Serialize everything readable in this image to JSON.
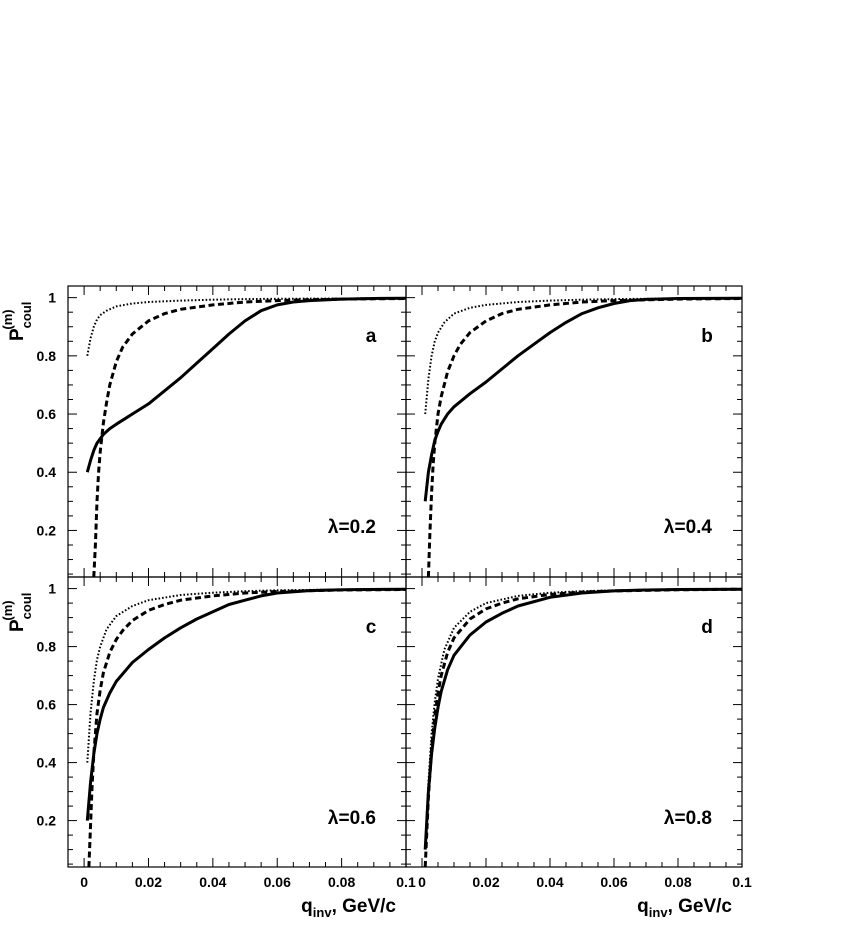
{
  "chart_data": [
    {
      "type": "line",
      "panel": "a",
      "annotation": "λ=0.2",
      "xlim": [
        -0.005,
        0.1
      ],
      "ylim": [
        0.04,
        1.04
      ],
      "y_axis_title": "P",
      "y_axis_sub": "coul",
      "y_axis_sup": "(m)",
      "x_axis_title": "",
      "x_axis_sub": "",
      "x_axis_tail": "",
      "series": [
        {
          "style": "solid",
          "x": [
            0.001,
            0.002,
            0.003,
            0.004,
            0.005,
            0.006,
            0.008,
            0.01,
            0.015,
            0.02,
            0.025,
            0.03,
            0.035,
            0.04,
            0.045,
            0.05,
            0.055,
            0.06,
            0.065,
            0.07,
            0.08,
            0.09,
            0.1
          ],
          "y": [
            0.4,
            0.44,
            0.475,
            0.5,
            0.515,
            0.53,
            0.55,
            0.565,
            0.6,
            0.635,
            0.68,
            0.725,
            0.775,
            0.825,
            0.875,
            0.92,
            0.955,
            0.975,
            0.985,
            0.99,
            0.995,
            0.997,
            0.998
          ]
        },
        {
          "style": "dashed",
          "x": [
            0.003,
            0.0035,
            0.004,
            0.0045,
            0.005,
            0.006,
            0.007,
            0.008,
            0.01,
            0.012,
            0.015,
            0.02,
            0.025,
            0.03,
            0.04,
            0.05,
            0.06,
            0.07,
            0.08,
            0.1
          ],
          "y": [
            0.04,
            0.15,
            0.3,
            0.4,
            0.47,
            0.57,
            0.64,
            0.7,
            0.78,
            0.83,
            0.875,
            0.92,
            0.945,
            0.96,
            0.975,
            0.985,
            0.99,
            0.993,
            0.995,
            0.997
          ]
        },
        {
          "style": "dotted",
          "x": [
            0.001,
            0.002,
            0.003,
            0.004,
            0.005,
            0.007,
            0.01,
            0.015,
            0.02,
            0.03,
            0.04,
            0.05,
            0.06,
            0.08,
            0.1
          ],
          "y": [
            0.8,
            0.86,
            0.9,
            0.925,
            0.94,
            0.955,
            0.97,
            0.98,
            0.985,
            0.99,
            0.993,
            0.995,
            0.996,
            0.997,
            0.998
          ]
        }
      ]
    },
    {
      "type": "line",
      "panel": "b",
      "annotation": "λ=0.4",
      "xlim": [
        -0.005,
        0.1
      ],
      "ylim": [
        0.04,
        1.04
      ],
      "y_axis_title": "",
      "y_axis_sub": "",
      "y_axis_sup": "",
      "x_axis_title": "",
      "x_axis_sub": "",
      "x_axis_tail": "",
      "series": [
        {
          "style": "solid",
          "x": [
            0.001,
            0.002,
            0.003,
            0.004,
            0.005,
            0.006,
            0.008,
            0.01,
            0.015,
            0.02,
            0.025,
            0.03,
            0.035,
            0.04,
            0.045,
            0.05,
            0.055,
            0.06,
            0.065,
            0.07,
            0.08,
            0.1
          ],
          "y": [
            0.3,
            0.4,
            0.46,
            0.51,
            0.54,
            0.565,
            0.6,
            0.625,
            0.67,
            0.71,
            0.755,
            0.8,
            0.84,
            0.88,
            0.915,
            0.945,
            0.965,
            0.98,
            0.99,
            0.994,
            0.997,
            0.998
          ]
        },
        {
          "style": "dashed",
          "x": [
            0.002,
            0.0025,
            0.003,
            0.0035,
            0.004,
            0.005,
            0.006,
            0.008,
            0.01,
            0.012,
            0.015,
            0.02,
            0.025,
            0.03,
            0.04,
            0.05,
            0.06,
            0.08,
            0.1
          ],
          "y": [
            0.04,
            0.2,
            0.33,
            0.43,
            0.5,
            0.6,
            0.66,
            0.745,
            0.8,
            0.84,
            0.88,
            0.92,
            0.945,
            0.96,
            0.975,
            0.985,
            0.99,
            0.995,
            0.997
          ]
        },
        {
          "style": "dotted",
          "x": [
            0.001,
            0.002,
            0.003,
            0.004,
            0.005,
            0.007,
            0.01,
            0.015,
            0.02,
            0.03,
            0.04,
            0.05,
            0.06,
            0.08,
            0.1
          ],
          "y": [
            0.6,
            0.72,
            0.8,
            0.85,
            0.88,
            0.915,
            0.945,
            0.965,
            0.975,
            0.985,
            0.99,
            0.993,
            0.995,
            0.997,
            0.998
          ]
        }
      ]
    },
    {
      "type": "line",
      "panel": "c",
      "annotation": "λ=0.6",
      "xlim": [
        -0.005,
        0.1
      ],
      "ylim": [
        0.04,
        1.04
      ],
      "y_axis_title": "P",
      "y_axis_sub": "coul",
      "y_axis_sup": "(m)",
      "x_axis_title": "q",
      "x_axis_sub": "inv",
      "x_axis_tail": ", GeV/c",
      "series": [
        {
          "style": "solid",
          "x": [
            0.001,
            0.002,
            0.003,
            0.004,
            0.005,
            0.006,
            0.008,
            0.01,
            0.015,
            0.02,
            0.025,
            0.03,
            0.035,
            0.04,
            0.045,
            0.05,
            0.055,
            0.06,
            0.07,
            0.08,
            0.1
          ],
          "y": [
            0.2,
            0.33,
            0.43,
            0.5,
            0.55,
            0.59,
            0.64,
            0.68,
            0.745,
            0.79,
            0.83,
            0.865,
            0.895,
            0.92,
            0.945,
            0.96,
            0.975,
            0.985,
            0.993,
            0.996,
            0.998
          ]
        },
        {
          "style": "dashed",
          "x": [
            0.0015,
            0.002,
            0.0025,
            0.003,
            0.004,
            0.005,
            0.006,
            0.008,
            0.01,
            0.012,
            0.015,
            0.02,
            0.025,
            0.03,
            0.04,
            0.05,
            0.06,
            0.08,
            0.1
          ],
          "y": [
            0.04,
            0.18,
            0.32,
            0.43,
            0.57,
            0.65,
            0.71,
            0.78,
            0.825,
            0.855,
            0.89,
            0.925,
            0.945,
            0.96,
            0.975,
            0.985,
            0.99,
            0.995,
            0.997
          ]
        },
        {
          "style": "dotted",
          "x": [
            0.001,
            0.002,
            0.003,
            0.004,
            0.005,
            0.007,
            0.01,
            0.015,
            0.02,
            0.03,
            0.04,
            0.05,
            0.06,
            0.08,
            0.1
          ],
          "y": [
            0.4,
            0.57,
            0.68,
            0.755,
            0.8,
            0.86,
            0.905,
            0.94,
            0.96,
            0.978,
            0.986,
            0.991,
            0.994,
            0.997,
            0.998
          ]
        }
      ]
    },
    {
      "type": "line",
      "panel": "d",
      "annotation": "λ=0.8",
      "xlim": [
        -0.005,
        0.1
      ],
      "ylim": [
        0.04,
        1.04
      ],
      "y_axis_title": "",
      "y_axis_sub": "",
      "y_axis_sup": "",
      "x_axis_title": "q",
      "x_axis_sub": "inv",
      "x_axis_tail": ", GeV/c",
      "series": [
        {
          "style": "solid",
          "x": [
            0.001,
            0.0015,
            0.002,
            0.003,
            0.004,
            0.005,
            0.006,
            0.008,
            0.01,
            0.015,
            0.02,
            0.025,
            0.03,
            0.04,
            0.05,
            0.06,
            0.07,
            0.08,
            0.1
          ],
          "y": [
            0.1,
            0.2,
            0.3,
            0.43,
            0.52,
            0.59,
            0.645,
            0.72,
            0.77,
            0.84,
            0.885,
            0.915,
            0.94,
            0.97,
            0.985,
            0.992,
            0.995,
            0.997,
            0.998
          ]
        },
        {
          "style": "dashed",
          "x": [
            0.001,
            0.0015,
            0.002,
            0.003,
            0.004,
            0.005,
            0.006,
            0.008,
            0.01,
            0.015,
            0.02,
            0.025,
            0.03,
            0.04,
            0.05,
            0.06,
            0.08,
            0.1
          ],
          "y": [
            0.04,
            0.16,
            0.28,
            0.45,
            0.56,
            0.64,
            0.7,
            0.78,
            0.83,
            0.895,
            0.93,
            0.95,
            0.965,
            0.98,
            0.988,
            0.992,
            0.996,
            0.998
          ]
        },
        {
          "style": "dotted",
          "x": [
            0.001,
            0.0015,
            0.002,
            0.003,
            0.004,
            0.005,
            0.007,
            0.01,
            0.015,
            0.02,
            0.03,
            0.04,
            0.05,
            0.06,
            0.08,
            0.1
          ],
          "y": [
            0.1,
            0.22,
            0.33,
            0.5,
            0.61,
            0.69,
            0.79,
            0.865,
            0.92,
            0.95,
            0.975,
            0.986,
            0.991,
            0.994,
            0.997,
            0.998
          ]
        }
      ]
    }
  ],
  "axes": {
    "x_ticks": [
      "0",
      "0.02",
      "0.04",
      "0.06",
      "0.08",
      "0.1"
    ],
    "x_tick_values": [
      0,
      0.02,
      0.04,
      0.06,
      0.08,
      0.1
    ],
    "y_ticks": [
      "0.2",
      "0.4",
      "0.6",
      "0.8",
      "1"
    ],
    "y_tick_values": [
      0.2,
      0.4,
      0.6,
      0.8,
      1.0
    ]
  }
}
